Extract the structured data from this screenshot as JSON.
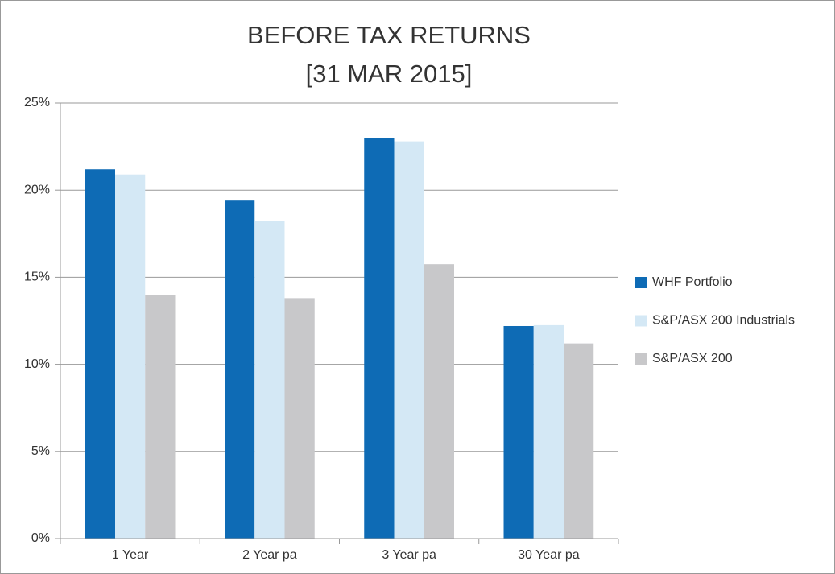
{
  "chart_data": {
    "type": "bar",
    "title": "BEFORE TAX RETURNS",
    "subtitle": "[31 MAR 2015]",
    "categories": [
      "1 Year",
      "2 Year pa",
      "3 Year pa",
      "30 Year pa"
    ],
    "series": [
      {
        "name": "WHF Portfolio",
        "color": "#0e6bb5",
        "values": [
          21.2,
          19.4,
          23.0,
          12.2
        ]
      },
      {
        "name": "S&P/ASX 200 Industrials",
        "color": "#d4e8f5",
        "values": [
          20.9,
          18.25,
          22.8,
          12.25
        ]
      },
      {
        "name": "S&P/ASX 200",
        "color": "#c8c8ca",
        "values": [
          14.0,
          13.8,
          15.75,
          11.2
        ]
      }
    ],
    "ylim": [
      0,
      25
    ],
    "yticks": [
      {
        "value": 0,
        "label": "0%"
      },
      {
        "value": 5,
        "label": "5%"
      },
      {
        "value": 10,
        "label": "10%"
      },
      {
        "value": 15,
        "label": "15%"
      },
      {
        "value": 20,
        "label": "20%"
      },
      {
        "value": 25,
        "label": "25%"
      }
    ],
    "grid": true,
    "legend": "right"
  }
}
